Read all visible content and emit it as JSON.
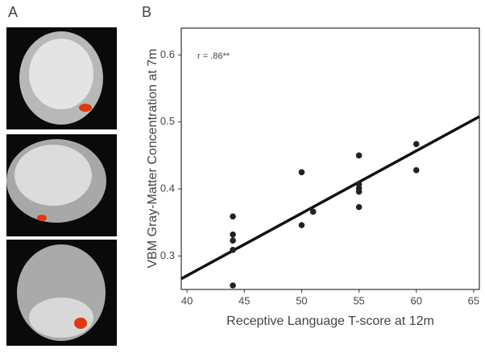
{
  "panel_labels": [
    "A",
    "B"
  ],
  "chart_data": {
    "type": "scatter",
    "xlabel": "Receptive Language T-score at 12m",
    "ylabel": "VBM Gray-Matter Concentration at 7m",
    "annotation": "r = .86**",
    "x": [
      44,
      44,
      44,
      44,
      44,
      50,
      50,
      51,
      55,
      55,
      55,
      55,
      55,
      60,
      60
    ],
    "values": [
      0.359,
      0.332,
      0.323,
      0.309,
      0.256,
      0.425,
      0.346,
      0.366,
      0.45,
      0.407,
      0.401,
      0.396,
      0.373,
      0.467,
      0.428
    ],
    "color": "#222222",
    "fit_line": {
      "x": [
        39.5,
        65.5
      ],
      "y": [
        0.266,
        0.508
      ]
    },
    "xlim": [
      39.5,
      65.5
    ],
    "ylim": [
      0.25,
      0.64
    ],
    "xticks": [
      40,
      45,
      50,
      55,
      60,
      65
    ],
    "yticks": [
      0.3,
      0.4,
      0.5,
      0.6
    ]
  }
}
